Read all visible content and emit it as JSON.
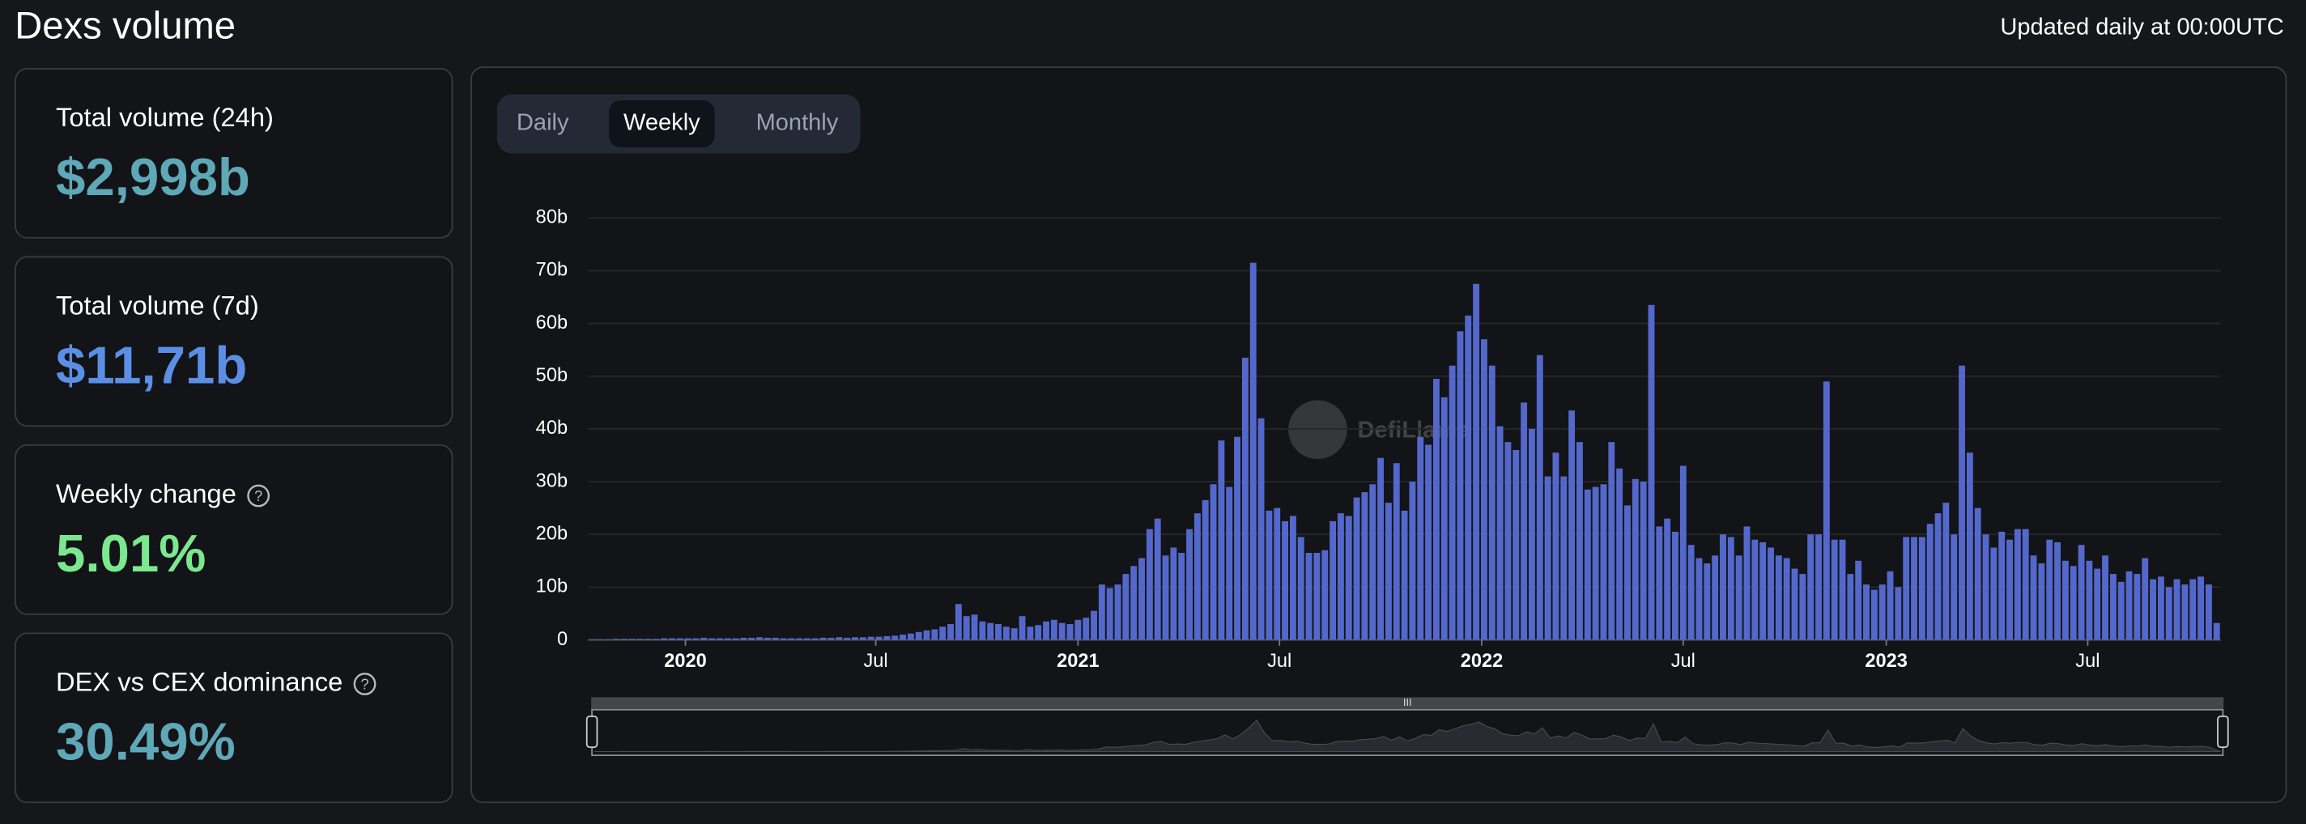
{
  "header": {
    "title": "Dexs volume",
    "updated": "Updated daily at 00:00UTC"
  },
  "cards": [
    {
      "label": "Total volume (24h)",
      "value": "$2,998b",
      "color": "#5fa8b8"
    },
    {
      "label": "Total volume (7d)",
      "value": "$11,71b",
      "color": "#5b8fe6"
    },
    {
      "label": "Weekly change",
      "value": "5.01%",
      "color": "#7be890"
    },
    {
      "label": "DEX vs CEX dominance",
      "value": "30.49%",
      "color": "#5fa8b8"
    }
  ],
  "tabs": {
    "items": [
      "Daily",
      "Weekly",
      "Monthly"
    ],
    "active": 1
  },
  "watermark": "DefiLlama",
  "chart_data": {
    "type": "bar",
    "color": "#5468cc",
    "grid": true,
    "categories": [
      null,
      null,
      null,
      null,
      null,
      null,
      null,
      null,
      null,
      null,
      null,
      null,
      null,
      null,
      null,
      null,
      null,
      null,
      null,
      null,
      null,
      null,
      null,
      null,
      null,
      null,
      null,
      null,
      null,
      null,
      null,
      null,
      null,
      null,
      null,
      null,
      null,
      null,
      null,
      null,
      null,
      null,
      null,
      null,
      null,
      null,
      null,
      null,
      null,
      null,
      null,
      null,
      null,
      null,
      null,
      null,
      null,
      null,
      null,
      null,
      null,
      null,
      null,
      null,
      null,
      null,
      null,
      null,
      null,
      null,
      null,
      null,
      null,
      null,
      null,
      null,
      null,
      null,
      null,
      null,
      null,
      null,
      null,
      null,
      null,
      null,
      null,
      null,
      null,
      null,
      null,
      null,
      null,
      null,
      null,
      null,
      null,
      null,
      null,
      null,
      null,
      null,
      null,
      null,
      null,
      null,
      null,
      null,
      null,
      null,
      null,
      null,
      null,
      null,
      null,
      null,
      null,
      null,
      null,
      null,
      null,
      null,
      null,
      null,
      null,
      null,
      null,
      null,
      null,
      null,
      null,
      null,
      null,
      null,
      null,
      null,
      null,
      null,
      null,
      null,
      null,
      null,
      null,
      null,
      null,
      null,
      null,
      null,
      null,
      null,
      null,
      null,
      null,
      null,
      null,
      null,
      null,
      null,
      null,
      null,
      null,
      null,
      null,
      null,
      null,
      null,
      null,
      null,
      null,
      null,
      null,
      null,
      null,
      null,
      null,
      null,
      null,
      null,
      null,
      null,
      null,
      null,
      null,
      null,
      null,
      null,
      null,
      null,
      null,
      null,
      null,
      null,
      null,
      null,
      null,
      null,
      null,
      null,
      null,
      null,
      null,
      null,
      null,
      null,
      null
    ],
    "values": [
      0.1,
      0.1,
      0.1,
      0.2,
      0.2,
      0.2,
      0.2,
      0.2,
      0.2,
      0.3,
      0.3,
      0.3,
      0.3,
      0.3,
      0.4,
      0.3,
      0.3,
      0.3,
      0.3,
      0.4,
      0.4,
      0.5,
      0.4,
      0.4,
      0.3,
      0.3,
      0.3,
      0.3,
      0.3,
      0.4,
      0.4,
      0.5,
      0.4,
      0.5,
      0.5,
      0.6,
      0.6,
      0.7,
      0.8,
      1.0,
      1.2,
      1.5,
      1.8,
      2.0,
      2.5,
      3.0,
      6.8,
      4.5,
      4.8,
      3.5,
      3.2,
      3.0,
      2.5,
      2.2,
      4.5,
      2.5,
      2.8,
      3.5,
      3.8,
      3.2,
      3.0,
      3.8,
      4.2,
      5.5,
      10.5,
      9.8,
      10.5,
      12.5,
      14,
      15.5,
      21,
      23,
      16,
      17.5,
      16.5,
      21,
      24,
      26.5,
      29.5,
      37.8,
      29,
      38.5,
      53.5,
      71.5,
      42,
      24.5,
      25,
      22.5,
      23.5,
      19.5,
      16.5,
      16.5,
      17,
      22.5,
      24,
      23.5,
      27,
      28,
      29.5,
      34.5,
      26,
      33.5,
      24.5,
      30,
      38.5,
      37,
      49.5,
      46,
      52,
      58.5,
      61.5,
      67.5,
      57,
      52,
      40.5,
      37.5,
      36,
      45,
      40,
      54,
      31,
      35.5,
      31,
      43.5,
      37.5,
      28.5,
      29,
      29.5,
      37.5,
      32.5,
      25.5,
      30.5,
      30,
      63.5,
      21.5,
      23,
      20.5,
      33,
      18,
      15.5,
      14.5,
      16,
      20,
      19.5,
      16,
      21.5,
      19,
      18.5,
      17.5,
      16,
      15.5,
      13.5,
      12.5,
      20,
      20,
      49,
      19,
      19,
      12.5,
      15,
      10.5,
      9.5,
      10.5,
      13,
      10,
      19.5,
      19.5,
      19.5,
      22,
      24,
      26,
      20,
      52,
      35.5,
      25,
      20,
      17.5,
      20.5,
      19,
      21,
      21,
      16,
      14.5,
      19,
      18.5,
      15,
      14,
      18,
      15,
      13.5,
      16,
      12.5,
      11,
      13,
      12.5,
      15.5,
      11.5,
      12,
      10,
      11.5,
      10.5,
      11.5,
      12,
      10.5,
      3.2
    ],
    "ylim": [
      0,
      80
    ],
    "yticks": [
      0,
      {
        "value": 10,
        "label": "10b"
      },
      {
        "value": 20,
        "label": "20b"
      },
      {
        "value": 30,
        "label": "30b"
      },
      {
        "value": 40,
        "label": "40b"
      },
      {
        "value": 50,
        "label": "50b"
      },
      {
        "value": 60,
        "label": "60b"
      },
      {
        "value": 70,
        "label": "70b"
      },
      {
        "value": 80,
        "label": "80b"
      }
    ],
    "xticks": [
      {
        "value": 11.7,
        "label": "2020"
      },
      {
        "value": 35.6,
        "label": "Jul"
      },
      {
        "value": 61.0,
        "label": "2021"
      },
      {
        "value": 86.3,
        "label": "Jul"
      },
      {
        "value": 111.7,
        "label": "2022"
      },
      {
        "value": 137.0,
        "label": "Jul"
      },
      {
        "value": 162.5,
        "label": "2023"
      },
      {
        "value": 187.8,
        "label": "Jul"
      }
    ]
  }
}
